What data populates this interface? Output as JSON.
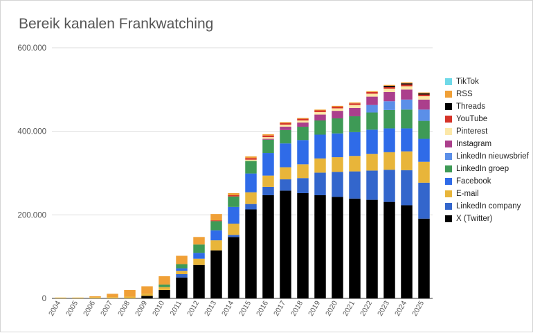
{
  "chart_data": {
    "type": "bar",
    "stacked": true,
    "title": "Bereik kanalen Frankwatching",
    "xlabel": "",
    "ylabel": "",
    "ylim": [
      0,
      600000
    ],
    "yticks": [
      0,
      200000,
      400000,
      600000
    ],
    "ytick_labels": [
      "0",
      "200.000",
      "400.000",
      "600.000"
    ],
    "grid": true,
    "legend_position": "right",
    "categories": [
      "2004",
      "2005",
      "2006",
      "2007",
      "2008",
      "2009",
      "2010",
      "2011",
      "2012",
      "2013",
      "2014",
      "2015",
      "2016",
      "2017",
      "2018",
      "2019",
      "2020",
      "2021",
      "2022",
      "2023",
      "2024",
      "2025"
    ],
    "series": [
      {
        "name": "X (Twitter)",
        "color": "#000000",
        "values": [
          0,
          0,
          0,
          0,
          0,
          6000,
          20000,
          50000,
          80000,
          115000,
          147000,
          213000,
          247000,
          258000,
          252000,
          247000,
          243000,
          239000,
          236000,
          231000,
          223000,
          191000
        ]
      },
      {
        "name": "LinkedIn company",
        "color": "#3366cc",
        "values": [
          0,
          0,
          0,
          0,
          0,
          0,
          0,
          8000,
          0,
          0,
          5000,
          13000,
          20000,
          27000,
          36000,
          54000,
          60000,
          65000,
          70000,
          77000,
          84000,
          86000
        ]
      },
      {
        "name": "E-mail",
        "color": "#e8b53a",
        "values": [
          2000,
          2000,
          3000,
          3000,
          4000,
          5000,
          7000,
          8000,
          15000,
          24000,
          27000,
          28000,
          27000,
          29000,
          33000,
          34000,
          35000,
          37000,
          40000,
          42000,
          45000,
          50000
        ]
      },
      {
        "name": "Facebook",
        "color": "#2f6be8",
        "values": [
          0,
          0,
          0,
          0,
          0,
          0,
          0,
          6000,
          14000,
          24000,
          40000,
          45000,
          54000,
          57000,
          58000,
          57000,
          57000,
          57000,
          58000,
          57000,
          55000,
          55000
        ]
      },
      {
        "name": "LinkedIn groep",
        "color": "#3e9a56",
        "values": [
          0,
          0,
          0,
          0,
          0,
          0,
          6000,
          10000,
          20000,
          22000,
          25000,
          30000,
          32000,
          32000,
          32000,
          34000,
          36000,
          38000,
          41000,
          44000,
          45000,
          43000
        ]
      },
      {
        "name": "LinkedIn nieuwsbrief",
        "color": "#5b8fe8",
        "values": [
          0,
          0,
          0,
          0,
          0,
          0,
          0,
          0,
          0,
          0,
          0,
          0,
          0,
          0,
          0,
          0,
          0,
          0,
          18000,
          21000,
          24000,
          27000
        ]
      },
      {
        "name": "Instagram",
        "color": "#ab3f8c",
        "values": [
          0,
          0,
          0,
          0,
          0,
          0,
          0,
          0,
          0,
          0,
          0,
          0,
          2000,
          8000,
          10000,
          14000,
          18000,
          20000,
          20000,
          22000,
          24000,
          24000
        ]
      },
      {
        "name": "Pinterest",
        "color": "#fce8a8",
        "values": [
          0,
          0,
          0,
          0,
          0,
          0,
          0,
          0,
          0,
          0,
          0,
          3000,
          4000,
          5000,
          5000,
          6000,
          6000,
          7000,
          7000,
          8000,
          8000,
          8000
        ]
      },
      {
        "name": "YouTube",
        "color": "#d53328",
        "values": [
          0,
          0,
          0,
          0,
          0,
          0,
          0,
          0,
          0,
          2000,
          3000,
          4000,
          4000,
          4000,
          4000,
          4000,
          4000,
          4000,
          4000,
          4000,
          4000,
          4000
        ]
      },
      {
        "name": "Threads",
        "color": "#000000",
        "values": [
          0,
          0,
          0,
          0,
          0,
          0,
          0,
          0,
          0,
          0,
          0,
          0,
          0,
          0,
          0,
          0,
          0,
          0,
          0,
          3000,
          3000,
          3000
        ]
      },
      {
        "name": "RSS",
        "color": "#f0a037",
        "values": [
          0,
          0,
          2000,
          8000,
          16000,
          18000,
          20000,
          20000,
          18000,
          15000,
          5000,
          4000,
          3000,
          2000,
          2000,
          2000,
          2000,
          2000,
          2000,
          2000,
          2000,
          2000
        ]
      },
      {
        "name": "TikTok",
        "color": "#6fd9e8",
        "values": [
          0,
          0,
          0,
          0,
          0,
          0,
          0,
          0,
          0,
          0,
          0,
          0,
          0,
          0,
          0,
          0,
          0,
          0,
          0,
          0,
          0,
          0
        ]
      }
    ]
  }
}
